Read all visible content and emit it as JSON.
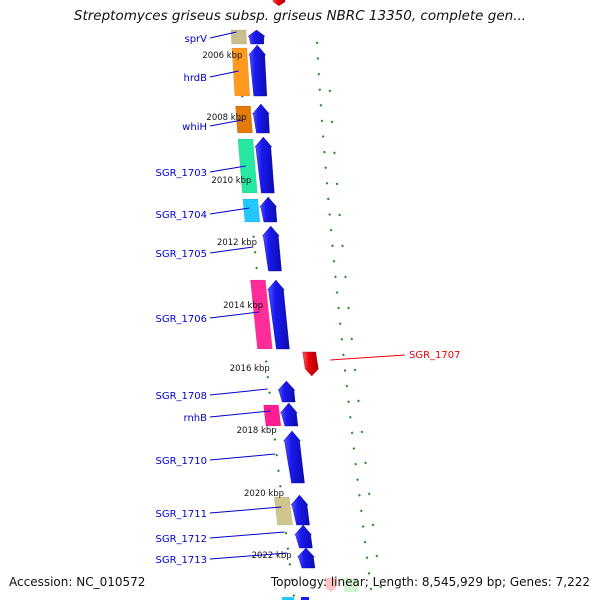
{
  "title": "Streptomyces griseus subsp. griseus NBRC 13350, complete gen...",
  "footer": {
    "accession": "Accession: NC_010572",
    "topology": "Topology: linear; Length: 8,545,929 bp; Genes: 7,222"
  },
  "colors": {
    "backbone": "#8a8a8a",
    "forward_gene": "#1a1af0",
    "reverse_gene": "#e8000a",
    "label_line": "#0000cc",
    "tick": "#1e8c1e"
  },
  "axis_labels": [
    "2006 kbp",
    "2008 kbp",
    "2010 kbp",
    "2012 kbp",
    "2014 kbp",
    "2016 kbp",
    "2018 kbp",
    "2020 kbp",
    "2022 kbp"
  ],
  "genes": [
    {
      "name": "sprV",
      "strand": "+",
      "feature_color": "#c9c08e"
    },
    {
      "name": "hrdB",
      "strand": "+",
      "feature_color": "#ff9a1f"
    },
    {
      "name": "whiH",
      "strand": "+",
      "feature_color": "#e27b08"
    },
    {
      "name": "SGR_1703",
      "strand": "+",
      "feature_color": "#26e8a2"
    },
    {
      "name": "SGR_1704",
      "strand": "+",
      "feature_color": "#22c8ff"
    },
    {
      "name": "SGR_1705",
      "strand": "+",
      "feature_color": ""
    },
    {
      "name": "SGR_1706",
      "strand": "+",
      "feature_color": "#ff2d9a"
    },
    {
      "name": "SGR_1707",
      "strand": "-",
      "feature_color": ""
    },
    {
      "name": "SGR_1708",
      "strand": "+",
      "feature_color": ""
    },
    {
      "name": "rnhB",
      "strand": "+",
      "feature_color": "#ff1f92"
    },
    {
      "name": "SGR_1710",
      "strand": "+",
      "feature_color": ""
    },
    {
      "name": "SGR_1711",
      "strand": "+",
      "feature_color": "#cfc68f"
    },
    {
      "name": "SGR_1712",
      "strand": "+",
      "feature_color": ""
    },
    {
      "name": "SGR_1713",
      "strand": "+",
      "feature_color": ""
    }
  ]
}
